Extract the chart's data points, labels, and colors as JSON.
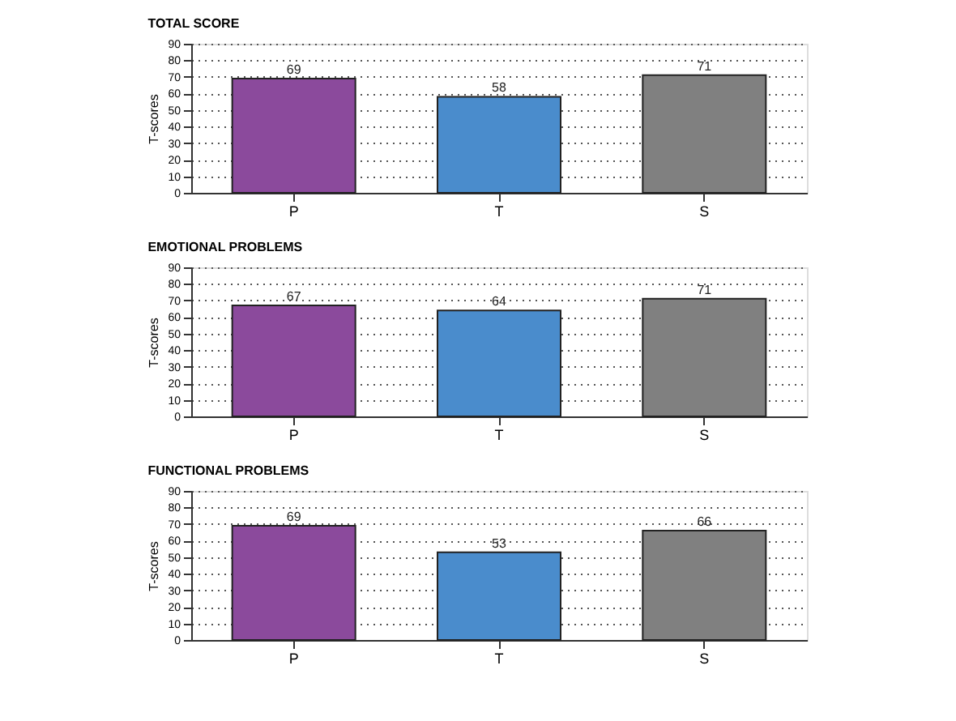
{
  "chart_data": [
    {
      "type": "bar",
      "title": "TOTAL SCORE",
      "ylabel": "T-scores",
      "categories": [
        "P",
        "T",
        "S"
      ],
      "values": [
        69,
        58,
        71
      ],
      "colors": [
        "#8b4a9c",
        "#4a8ccc",
        "#808080"
      ],
      "ylim": [
        0,
        90
      ],
      "yticks": [
        0,
        10,
        20,
        30,
        40,
        50,
        60,
        70,
        80,
        90
      ],
      "grid": "y",
      "data_labels": true
    },
    {
      "type": "bar",
      "title": "EMOTIONAL PROBLEMS",
      "ylabel": "T-scores",
      "categories": [
        "P",
        "T",
        "S"
      ],
      "values": [
        67,
        64,
        71
      ],
      "colors": [
        "#8b4a9c",
        "#4a8ccc",
        "#808080"
      ],
      "ylim": [
        0,
        90
      ],
      "yticks": [
        0,
        10,
        20,
        30,
        40,
        50,
        60,
        70,
        80,
        90
      ],
      "grid": "y",
      "data_labels": true
    },
    {
      "type": "bar",
      "title": "FUNCTIONAL PROBLEMS",
      "ylabel": "T-scores",
      "categories": [
        "P",
        "T",
        "S"
      ],
      "values": [
        69,
        53,
        66
      ],
      "colors": [
        "#8b4a9c",
        "#4a8ccc",
        "#808080"
      ],
      "ylim": [
        0,
        90
      ],
      "yticks": [
        0,
        10,
        20,
        30,
        40,
        50,
        60,
        70,
        80,
        90
      ],
      "grid": "y",
      "data_labels": true
    }
  ]
}
